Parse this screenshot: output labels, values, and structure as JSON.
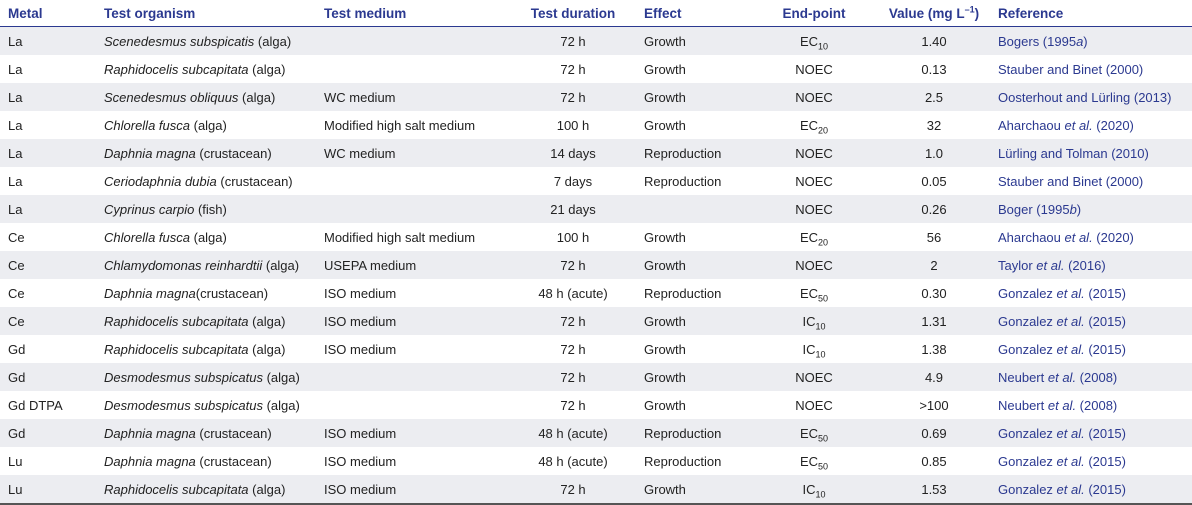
{
  "headers": {
    "metal": "Metal",
    "organism": "Test organism",
    "medium": "Test medium",
    "duration": "Test duration",
    "effect": "Effect",
    "endpoint": "End-point",
    "value_prefix": "Value (mg L",
    "value_sup": "–1",
    "value_suffix": ")",
    "reference": "Reference"
  },
  "rows": [
    {
      "metal": "La",
      "organism": "Scenedesmus subspicatis",
      "organism_note": " (alga)",
      "medium": "",
      "duration": "72 h",
      "effect": "Growth",
      "endpoint": "EC",
      "endpoint_sub": "10",
      "value": "1.40",
      "ref_a": "Bogers (1995",
      "ref_it": "a",
      "ref_b": ")"
    },
    {
      "metal": "La",
      "organism": "Raphidocelis subcapitata",
      "organism_note": " (alga)",
      "medium": "",
      "duration": "72 h",
      "effect": "Growth",
      "endpoint": "NOEC",
      "endpoint_sub": "",
      "value": "0.13",
      "ref_a": "Stauber and Binet (2000)",
      "ref_it": "",
      "ref_b": ""
    },
    {
      "metal": "La",
      "organism": "Scenedesmus obliquus",
      "organism_note": " (alga)",
      "medium": "WC medium",
      "duration": "72 h",
      "effect": "Growth",
      "endpoint": "NOEC",
      "endpoint_sub": "",
      "value": "2.5",
      "ref_a": "Oosterhout and Lürling (2013)",
      "ref_it": "",
      "ref_b": ""
    },
    {
      "metal": "La",
      "organism": "Chlorella fusca",
      "organism_note": " (alga)",
      "medium": "Modified high salt medium",
      "duration": "100 h",
      "effect": "Growth",
      "endpoint": "EC",
      "endpoint_sub": "20",
      "value": "32",
      "ref_a": "Aharchaou ",
      "ref_it": "et al.",
      "ref_b": " (2020)"
    },
    {
      "metal": "La",
      "organism": "Daphnia magna",
      "organism_note": " (crustacean)",
      "medium": "WC medium",
      "duration": "14 days",
      "effect": "Reproduction",
      "endpoint": "NOEC",
      "endpoint_sub": "",
      "value": "1.0",
      "ref_a": "Lürling and Tolman (2010)",
      "ref_it": "",
      "ref_b": ""
    },
    {
      "metal": "La",
      "organism": "Ceriodaphnia dubia",
      "organism_note": " (crustacean)",
      "medium": "",
      "duration": "7 days",
      "effect": "Reproduction",
      "endpoint": "NOEC",
      "endpoint_sub": "",
      "value": "0.05",
      "ref_a": "Stauber and Binet (2000)",
      "ref_it": "",
      "ref_b": ""
    },
    {
      "metal": "La",
      "organism": "Cyprinus carpio",
      "organism_note": " (fish)",
      "medium": "",
      "duration": "21 days",
      "effect": "",
      "endpoint": "NOEC",
      "endpoint_sub": "",
      "value": "0.26",
      "ref_a": "Boger (1995",
      "ref_it": "b",
      "ref_b": ")"
    },
    {
      "metal": "Ce",
      "organism": "Chlorella fusca",
      "organism_note": " (alga)",
      "medium": "Modified high salt medium",
      "duration": "100 h",
      "effect": "Growth",
      "endpoint": "EC",
      "endpoint_sub": "20",
      "value": "56",
      "ref_a": "Aharchaou ",
      "ref_it": "et al.",
      "ref_b": " (2020)"
    },
    {
      "metal": "Ce",
      "organism": "Chlamydomonas reinhardtii",
      "organism_note": " (alga)",
      "medium": "USEPA medium",
      "duration": "72 h",
      "effect": "Growth",
      "endpoint": "NOEC",
      "endpoint_sub": "",
      "value": "2",
      "ref_a": "Taylor ",
      "ref_it": "et al.",
      "ref_b": " (2016)"
    },
    {
      "metal": "Ce",
      "organism": "Daphnia magna",
      "organism_note": "(crustacean)",
      "medium": "ISO medium",
      "duration": "48 h (acute)",
      "effect": "Reproduction",
      "endpoint": "EC",
      "endpoint_sub": "50",
      "value": "0.30",
      "ref_a": "Gonzalez ",
      "ref_it": "et al.",
      "ref_b": " (2015)"
    },
    {
      "metal": "Ce",
      "organism": "Raphidocelis subcapitata",
      "organism_note": " (alga)",
      "medium": "ISO medium",
      "duration": "72 h",
      "effect": "Growth",
      "endpoint": "IC",
      "endpoint_sub": "10",
      "value": "1.31",
      "ref_a": "Gonzalez ",
      "ref_it": "et al.",
      "ref_b": " (2015)"
    },
    {
      "metal": "Gd",
      "organism": "Raphidocelis subcapitata",
      "organism_note": " (alga)",
      "medium": "ISO medium",
      "duration": "72 h",
      "effect": "Growth",
      "endpoint": "IC",
      "endpoint_sub": "10",
      "value": "1.38",
      "ref_a": "Gonzalez ",
      "ref_it": "et al.",
      "ref_b": " (2015)"
    },
    {
      "metal": "Gd",
      "organism": "Desmodesmus subspicatus",
      "organism_note": " (alga)",
      "medium": "",
      "duration": "72 h",
      "effect": "Growth",
      "endpoint": "NOEC",
      "endpoint_sub": "",
      "value": "4.9",
      "ref_a": "Neubert ",
      "ref_it": "et al.",
      "ref_b": " (2008)"
    },
    {
      "metal": "Gd DTPA",
      "organism": "Desmodesmus subspicatus",
      "organism_note": " (alga)",
      "medium": "",
      "duration": "72 h",
      "effect": "Growth",
      "endpoint": "NOEC",
      "endpoint_sub": "",
      "value": ">100",
      "ref_a": "Neubert ",
      "ref_it": "et al.",
      "ref_b": " (2008)"
    },
    {
      "metal": "Gd",
      "organism": "Daphnia magna",
      "organism_note": " (crustacean)",
      "medium": "ISO medium",
      "duration": "48 h (acute)",
      "effect": "Reproduction",
      "endpoint": "EC",
      "endpoint_sub": "50",
      "value": "0.69",
      "ref_a": "Gonzalez ",
      "ref_it": "et al.",
      "ref_b": " (2015)"
    },
    {
      "metal": "Lu",
      "organism": "Daphnia magna",
      "organism_note": " (crustacean)",
      "medium": "ISO medium",
      "duration": "48 h (acute)",
      "effect": "Reproduction",
      "endpoint": "EC",
      "endpoint_sub": "50",
      "value": "0.85",
      "ref_a": "Gonzalez ",
      "ref_it": "et al.",
      "ref_b": " (2015)"
    },
    {
      "metal": "Lu",
      "organism": "Raphidocelis subcapitata",
      "organism_note": " (alga)",
      "medium": "ISO medium",
      "duration": "72 h",
      "effect": "Growth",
      "endpoint": "IC",
      "endpoint_sub": "10",
      "value": "1.53",
      "ref_a": "Gonzalez ",
      "ref_it": "et al.",
      "ref_b": " (2015)"
    }
  ]
}
